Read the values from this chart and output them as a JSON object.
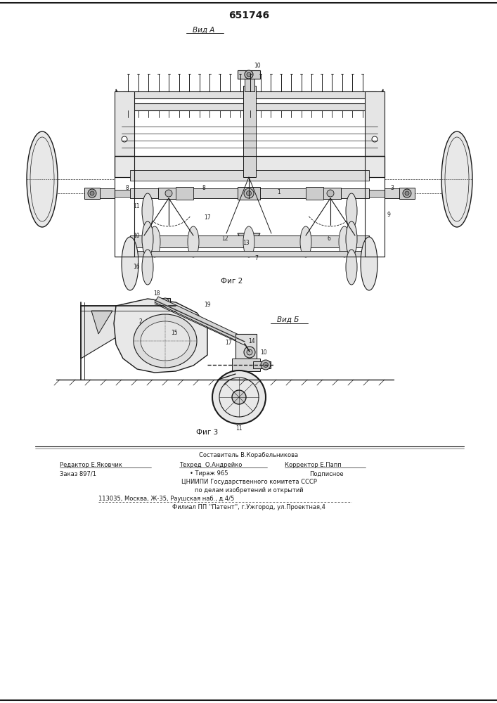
{
  "title": "651746",
  "view_a_label": "Вид А",
  "fig2_label": "Фиг 2",
  "fig3_label": "Фиг 3",
  "view_b_label": "Вид Б",
  "footer_lines": [
    "Составитель В.Корабельникова",
    "Редактор Е.Яковчик",
    "Техред  О.Андрейко",
    "Корректор Е.Папп",
    "Заказ 897/1",
    "Тираж 965",
    "Подписное",
    "ЦНИИПИ Государственного комитета СССР",
    "по делам изобретений и открытий",
    "113035, Москва, Ж-35, Раушская наб., д.4/5",
    "Филиал ПП ''Патент'', г.Ужгород, ул.Проектная,4"
  ],
  "bg_color": "#ffffff",
  "line_color": "#1a1a1a",
  "font_size_title": 10,
  "font_size_label": 7,
  "font_size_footer": 6
}
